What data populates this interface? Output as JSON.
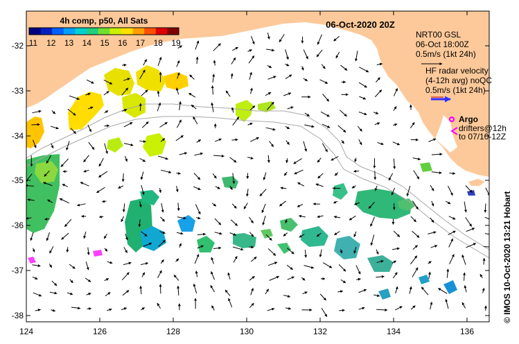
{
  "map": {
    "date_title": "06-Oct-2020 20Z",
    "colorbar": {
      "title": "4h comp, p50, All Sats",
      "ticks": [
        "11",
        "12",
        "13",
        "14",
        "15",
        "16",
        "17",
        "18",
        "19"
      ],
      "colors": [
        "#00007f",
        "#0020c0",
        "#0060ff",
        "#00a0ff",
        "#00d0d0",
        "#20d080",
        "#70e030",
        "#c8f000",
        "#ffe000",
        "#ffa000",
        "#ff5000",
        "#e00000",
        "#800000"
      ]
    },
    "x_axis": {
      "ticks": [
        "124",
        "126",
        "128",
        "130",
        "132",
        "134",
        "136"
      ],
      "values": [
        124,
        126,
        128,
        130,
        132,
        134,
        136
      ],
      "range": [
        124,
        136.6
      ]
    },
    "y_axis": {
      "ticks": [
        "-32",
        "-33",
        "-34",
        "-35",
        "-36",
        "-37",
        "-38"
      ],
      "values": [
        -32,
        -33,
        -34,
        -35,
        -36,
        -37,
        -38
      ],
      "range": [
        -38.1,
        -31.35
      ]
    },
    "legend": {
      "nrt_title": "NRT00 GSL",
      "nrt_time": "06-Oct 18:00Z",
      "nrt_scale": "0.5m/s (1kt 24h)",
      "hf_title": "HF radar velocity",
      "hf_avg": "(4-12h avg) noQC",
      "hf_scale": "0.5m/s (1kt 24h)",
      "argo": "Argo",
      "drifters_line1": "drifters@12h",
      "drifters_line2": "to 07/10-12Z"
    },
    "credit": "© IMOS 10-Oct-2020 13:21 Hobart",
    "colors": {
      "land": "#fdc99a",
      "ocean": "#ffffff",
      "argo": "#ff00ff",
      "hf_radar": "#3030ff",
      "isobath": "#a8a8a8"
    }
  }
}
